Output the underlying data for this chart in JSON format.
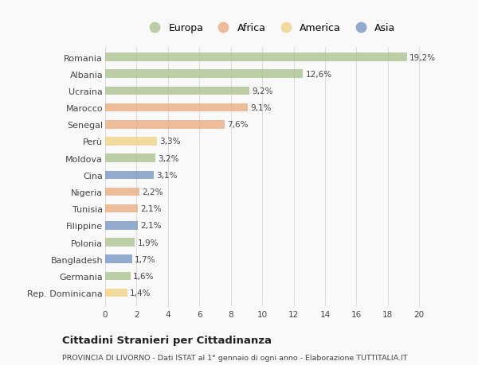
{
  "countries": [
    "Romania",
    "Albania",
    "Ucraina",
    "Marocco",
    "Senegal",
    "Perù",
    "Moldova",
    "Cina",
    "Nigeria",
    "Tunisia",
    "Filippine",
    "Polonia",
    "Bangladesh",
    "Germania",
    "Rep. Dominicana"
  ],
  "values": [
    19.2,
    12.6,
    9.2,
    9.1,
    7.6,
    3.3,
    3.2,
    3.1,
    2.2,
    2.1,
    2.1,
    1.9,
    1.7,
    1.6,
    1.4
  ],
  "labels": [
    "19,2%",
    "12,6%",
    "9,2%",
    "9,1%",
    "7,6%",
    "3,3%",
    "3,2%",
    "3,1%",
    "2,2%",
    "2,1%",
    "2,1%",
    "1,9%",
    "1,7%",
    "1,6%",
    "1,4%"
  ],
  "continents": [
    "Europa",
    "Europa",
    "Europa",
    "Africa",
    "Africa",
    "America",
    "Europa",
    "Asia",
    "Africa",
    "Africa",
    "Asia",
    "Europa",
    "Asia",
    "Europa",
    "America"
  ],
  "continent_colors": {
    "Europa": "#a8c08a",
    "Africa": "#e8a87c",
    "America": "#f0d080",
    "Asia": "#7090c0"
  },
  "legend_items": [
    "Europa",
    "Africa",
    "America",
    "Asia"
  ],
  "xlim": [
    0,
    21
  ],
  "xticks": [
    0,
    2,
    4,
    6,
    8,
    10,
    12,
    14,
    16,
    18,
    20
  ],
  "title": "Cittadini Stranieri per Cittadinanza",
  "subtitle": "PROVINCIA DI LIVORNO - Dati ISTAT al 1° gennaio di ogni anno - Elaborazione TUTTITALIA.IT",
  "background_color": "#f9f9f9",
  "bar_height": 0.5,
  "grid_color": "#dddddd",
  "text_color": "#444444"
}
